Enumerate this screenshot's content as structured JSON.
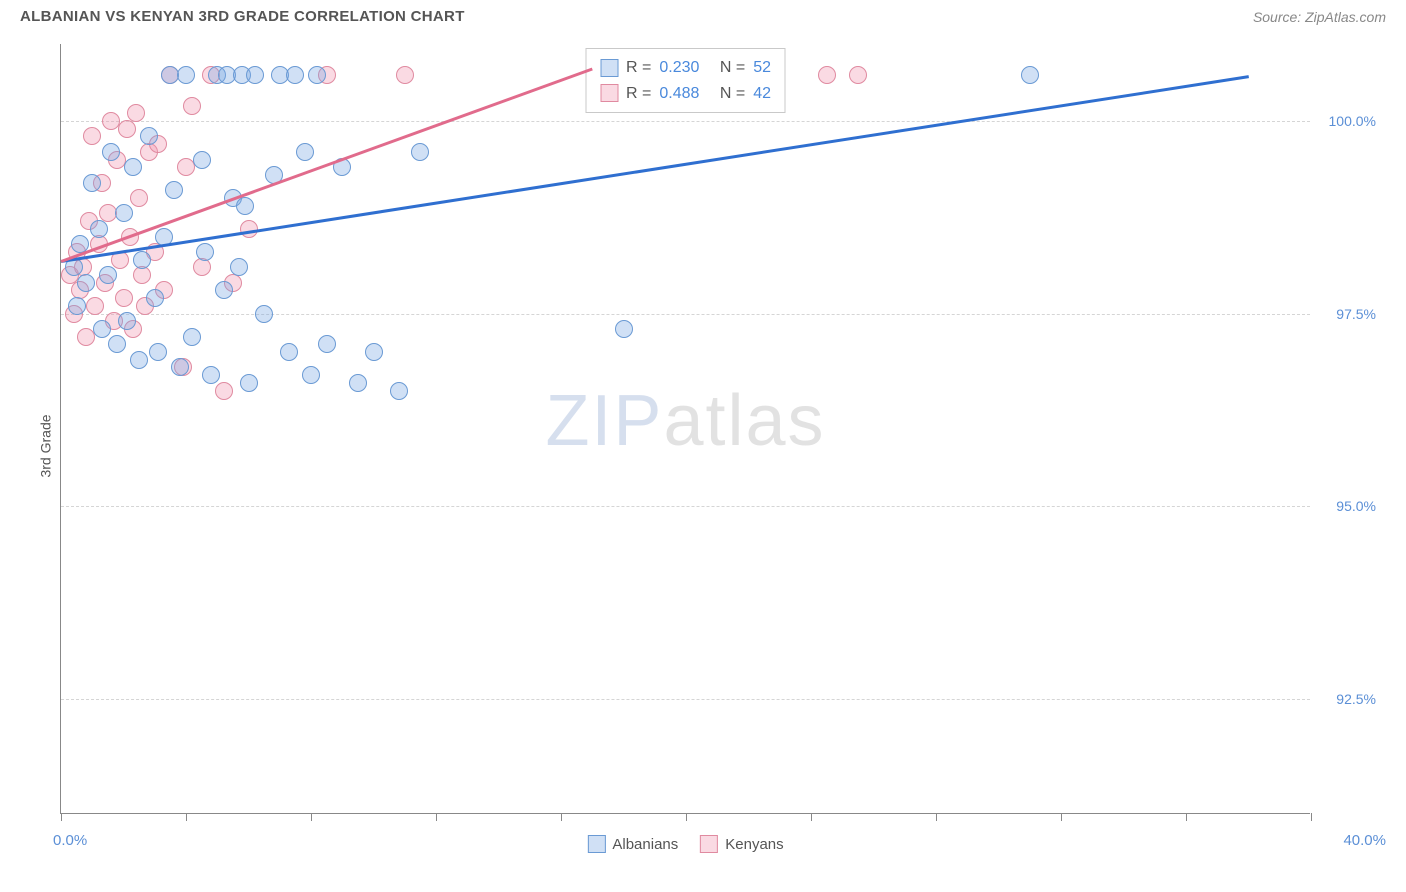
{
  "header": {
    "title": "ALBANIAN VS KENYAN 3RD GRADE CORRELATION CHART",
    "source": "Source: ZipAtlas.com"
  },
  "watermark": {
    "part1": "ZIP",
    "part2": "atlas"
  },
  "chart": {
    "type": "scatter",
    "ylabel": "3rd Grade",
    "xlim": [
      0,
      40
    ],
    "ylim": [
      91,
      101
    ],
    "xtick_positions": [
      0,
      4,
      8,
      12,
      16,
      20,
      24,
      28,
      32,
      36,
      40
    ],
    "x_min_label": "0.0%",
    "x_max_label": "40.0%",
    "ytick_labels": [
      {
        "v": 92.5,
        "t": "92.5%"
      },
      {
        "v": 95.0,
        "t": "95.0%"
      },
      {
        "v": 97.5,
        "t": "97.5%"
      },
      {
        "v": 100.0,
        "t": "100.0%"
      }
    ],
    "grid_color": "#d5d5d5",
    "background_color": "#ffffff",
    "series": {
      "albanians": {
        "label": "Albanians",
        "fill": "rgba(120,165,225,0.35)",
        "stroke": "#6a9ad4",
        "trend_color": "#2f6fd0",
        "trend": {
          "x1": 0,
          "y1": 98.2,
          "x2": 38,
          "y2": 100.6
        },
        "stats": {
          "R": "0.230",
          "N": "52"
        },
        "points": [
          [
            0.4,
            98.1
          ],
          [
            0.5,
            97.6
          ],
          [
            0.6,
            98.4
          ],
          [
            0.8,
            97.9
          ],
          [
            1.0,
            99.2
          ],
          [
            1.2,
            98.6
          ],
          [
            1.3,
            97.3
          ],
          [
            1.5,
            98.0
          ],
          [
            1.6,
            99.6
          ],
          [
            1.8,
            97.1
          ],
          [
            2.0,
            98.8
          ],
          [
            2.1,
            97.4
          ],
          [
            2.3,
            99.4
          ],
          [
            2.5,
            96.9
          ],
          [
            2.6,
            98.2
          ],
          [
            2.8,
            99.8
          ],
          [
            3.0,
            97.7
          ],
          [
            3.1,
            97.0
          ],
          [
            3.3,
            98.5
          ],
          [
            3.5,
            100.6
          ],
          [
            3.6,
            99.1
          ],
          [
            3.8,
            96.8
          ],
          [
            4.0,
            100.6
          ],
          [
            4.2,
            97.2
          ],
          [
            4.5,
            99.5
          ],
          [
            4.6,
            98.3
          ],
          [
            4.8,
            96.7
          ],
          [
            5.0,
            100.6
          ],
          [
            5.2,
            97.8
          ],
          [
            5.3,
            100.6
          ],
          [
            5.5,
            99.0
          ],
          [
            5.7,
            98.1
          ],
          [
            5.8,
            100.6
          ],
          [
            6.0,
            96.6
          ],
          [
            6.2,
            100.6
          ],
          [
            6.5,
            97.5
          ],
          [
            6.8,
            99.3
          ],
          [
            7.0,
            100.6
          ],
          [
            7.3,
            97.0
          ],
          [
            7.5,
            100.6
          ],
          [
            7.8,
            99.6
          ],
          [
            8.0,
            96.7
          ],
          [
            8.2,
            100.6
          ],
          [
            8.5,
            97.1
          ],
          [
            9.0,
            99.4
          ],
          [
            9.5,
            96.6
          ],
          [
            10.0,
            97.0
          ],
          [
            10.8,
            96.5
          ],
          [
            11.5,
            99.6
          ],
          [
            18.0,
            97.3
          ],
          [
            31.0,
            100.6
          ],
          [
            5.9,
            98.9
          ]
        ]
      },
      "kenyans": {
        "label": "Kenyans",
        "fill": "rgba(240,150,175,0.35)",
        "stroke": "#e08aa0",
        "trend_color": "#e16b8c",
        "trend": {
          "x1": 0,
          "y1": 98.2,
          "x2": 17,
          "y2": 100.7
        },
        "stats": {
          "R": "0.488",
          "N": "42"
        },
        "points": [
          [
            0.3,
            98.0
          ],
          [
            0.4,
            97.5
          ],
          [
            0.5,
            98.3
          ],
          [
            0.6,
            97.8
          ],
          [
            0.7,
            98.1
          ],
          [
            0.8,
            97.2
          ],
          [
            0.9,
            98.7
          ],
          [
            1.0,
            99.8
          ],
          [
            1.1,
            97.6
          ],
          [
            1.2,
            98.4
          ],
          [
            1.3,
            99.2
          ],
          [
            1.4,
            97.9
          ],
          [
            1.5,
            98.8
          ],
          [
            1.6,
            100.0
          ],
          [
            1.7,
            97.4
          ],
          [
            1.8,
            99.5
          ],
          [
            1.9,
            98.2
          ],
          [
            2.0,
            97.7
          ],
          [
            2.1,
            99.9
          ],
          [
            2.2,
            98.5
          ],
          [
            2.3,
            97.3
          ],
          [
            2.4,
            100.1
          ],
          [
            2.5,
            99.0
          ],
          [
            2.6,
            98.0
          ],
          [
            2.7,
            97.6
          ],
          [
            2.8,
            99.6
          ],
          [
            3.0,
            98.3
          ],
          [
            3.1,
            99.7
          ],
          [
            3.3,
            97.8
          ],
          [
            3.5,
            100.6
          ],
          [
            3.9,
            96.8
          ],
          [
            4.0,
            99.4
          ],
          [
            4.2,
            100.2
          ],
          [
            4.5,
            98.1
          ],
          [
            4.8,
            100.6
          ],
          [
            5.2,
            96.5
          ],
          [
            5.5,
            97.9
          ],
          [
            6.0,
            98.6
          ],
          [
            8.5,
            100.6
          ],
          [
            11.0,
            100.6
          ],
          [
            24.5,
            100.6
          ],
          [
            25.5,
            100.6
          ]
        ]
      }
    }
  }
}
